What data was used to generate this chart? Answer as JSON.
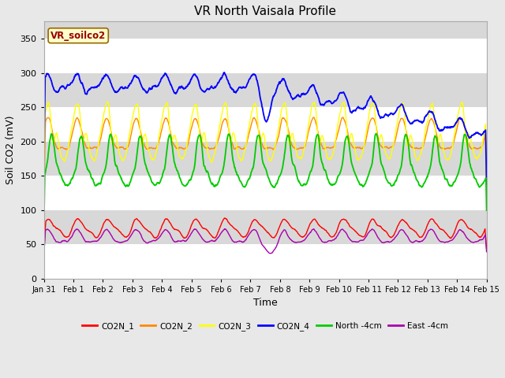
{
  "title": "VR North Vaisala Profile",
  "xlabel": "Time",
  "ylabel": "Soil CO2 (mV)",
  "ylim": [
    0,
    375
  ],
  "yticks": [
    0,
    50,
    100,
    150,
    200,
    250,
    300,
    350
  ],
  "background_color": "#e8e8e8",
  "label_box_text": "VR_soilco2",
  "label_box_bg": "#ffffcc",
  "label_box_fg": "#990000",
  "x_labels": [
    "Jan 31",
    "Feb 1",
    "Feb 2",
    "Feb 3",
    "Feb 4",
    "Feb 5",
    "Feb 6",
    "Feb 7",
    "Feb 8",
    "Feb 9",
    "Feb 10",
    "Feb 11",
    "Feb 12",
    "Feb 13",
    "Feb 14",
    "Feb 15"
  ],
  "series_colors": [
    "#ff0000",
    "#ff8800",
    "#ffff00",
    "#0000ff",
    "#00cc00",
    "#aa00aa"
  ],
  "series_labels": [
    "CO2N_1",
    "CO2N_2",
    "CO2N_3",
    "CO2N_4",
    "North -4cm",
    "East -4cm"
  ],
  "n_days": 15,
  "pts_per_day": 96
}
